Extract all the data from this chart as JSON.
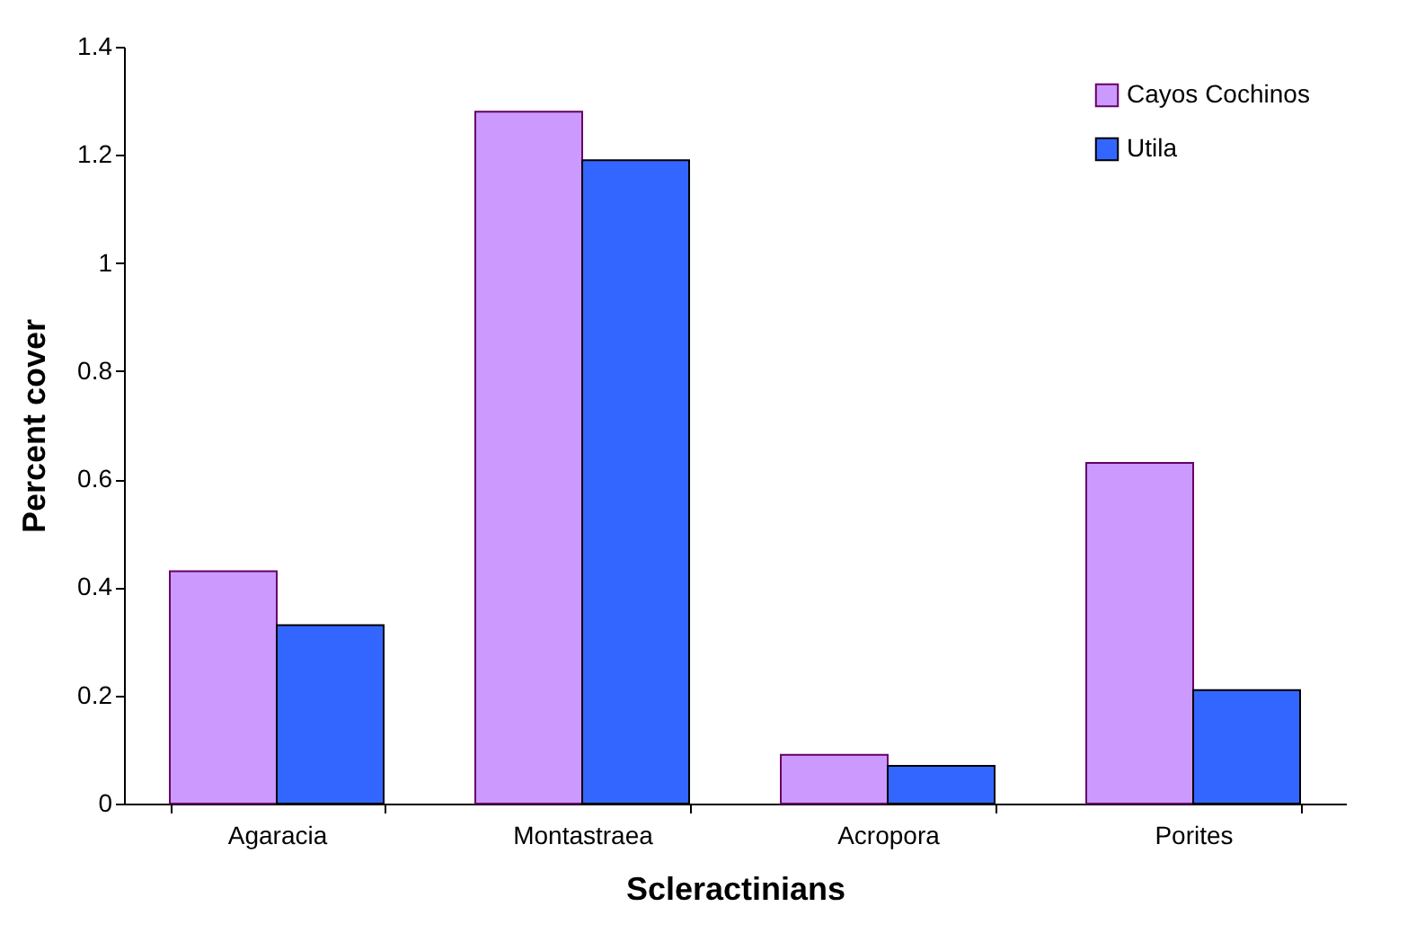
{
  "chart_data": {
    "type": "bar",
    "xlabel": "Scleractinians",
    "ylabel": "Percent cover",
    "categories": [
      "Agaracia",
      "Montastraea",
      "Acropora",
      "Porites"
    ],
    "series": [
      {
        "name": "Cayos Cochinos",
        "color": "#cc99ff",
        "values": [
          0.43,
          1.28,
          0.09,
          0.63
        ]
      },
      {
        "name": "Utila",
        "color": "#3366ff",
        "values": [
          0.33,
          1.19,
          0.07,
          0.21
        ]
      }
    ],
    "ylim": [
      0,
      1.4
    ],
    "yticks": [
      0,
      0.2,
      0.4,
      0.6,
      0.8,
      1,
      1.2,
      1.4
    ],
    "grid": false,
    "legend": "top right"
  }
}
